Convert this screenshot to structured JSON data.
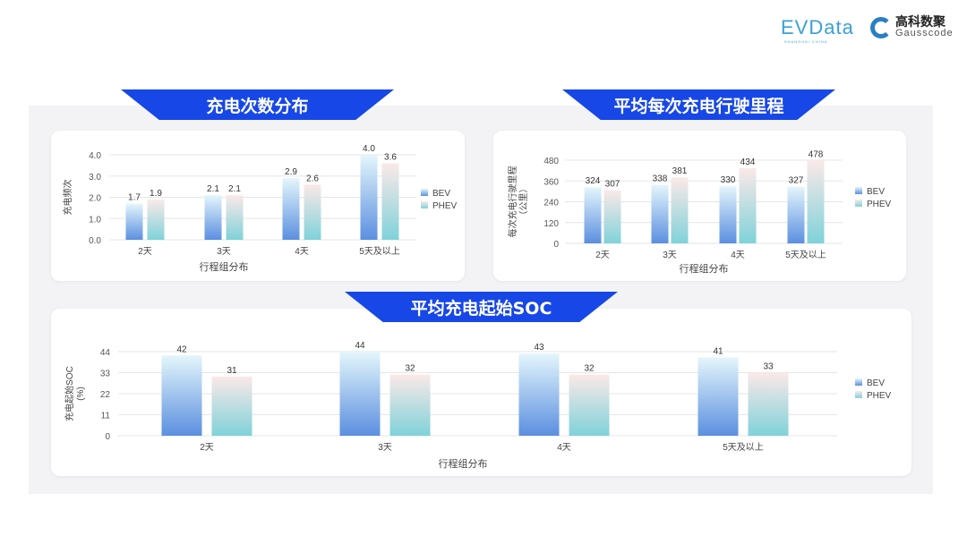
{
  "header": {
    "logo_evdata": "EVData",
    "logo_evdata_sub": "SHANGHAI CHINA",
    "logo_gauss_cn": "高科数聚",
    "logo_gauss_en": "Gausscode"
  },
  "banners": {
    "freq": "充电次数分布",
    "mileage": "平均每次充电行驶里程",
    "soc": "平均充电起始SOC"
  },
  "colors": {
    "banner": "#1747e6",
    "bev_bottom": "#5b8fe0",
    "bev_top": "#e4f6fb",
    "phev_bottom": "#7fd2da",
    "phev_top": "#fbe9e8"
  },
  "chart_data": [
    {
      "type": "bar",
      "categories": [
        "2天",
        "3天",
        "4天",
        "5天及以上"
      ],
      "series": [
        {
          "name": "BEV",
          "values": [
            1.7,
            2.1,
            2.9,
            4.0
          ]
        },
        {
          "name": "PHEV",
          "values": [
            1.9,
            2.1,
            2.6,
            3.6
          ]
        }
      ],
      "xlabel": "行程组分布",
      "ylabel": "充电频次",
      "ylim": [
        0,
        4.0
      ],
      "yticks": [
        "0.0",
        "1.0",
        "2.0",
        "3.0",
        "4.0"
      ],
      "value_labels": [
        [
          "1.7",
          "2.1",
          "2.9",
          "4.0"
        ],
        [
          "1.9",
          "2.1",
          "2.6",
          "3.6"
        ]
      ],
      "grid": true,
      "legend": "right"
    },
    {
      "type": "bar",
      "categories": [
        "2天",
        "3天",
        "4天",
        "5天及以上"
      ],
      "series": [
        {
          "name": "BEV",
          "values": [
            324,
            338,
            330,
            327
          ]
        },
        {
          "name": "PHEV",
          "values": [
            307,
            381,
            434,
            478
          ]
        }
      ],
      "xlabel": "行程组分布",
      "ylabel": "每次充电行驶里程",
      "ylabel2": "（公里）",
      "ylim": [
        0,
        480
      ],
      "yticks": [
        "0",
        "120",
        "240",
        "360",
        "480"
      ],
      "value_labels": [
        [
          "324",
          "338",
          "330",
          "327"
        ],
        [
          "307",
          "381",
          "434",
          "478"
        ]
      ],
      "grid": true,
      "legend": "right"
    },
    {
      "type": "bar",
      "categories": [
        "2天",
        "3天",
        "4天",
        "5天及以上"
      ],
      "series": [
        {
          "name": "BEV",
          "values": [
            42,
            44,
            43,
            41
          ]
        },
        {
          "name": "PHEV",
          "values": [
            31,
            32,
            32,
            33
          ]
        }
      ],
      "xlabel": "行程组分布",
      "ylabel": "充电起始SOC",
      "ylabel2": "(%)",
      "ylim": [
        0,
        44
      ],
      "yticks": [
        "0",
        "11",
        "22",
        "33",
        "44"
      ],
      "value_labels": [
        [
          "42",
          "44",
          "43",
          "41"
        ],
        [
          "31",
          "32",
          "32",
          "33"
        ]
      ],
      "grid": true,
      "legend": "right"
    }
  ]
}
